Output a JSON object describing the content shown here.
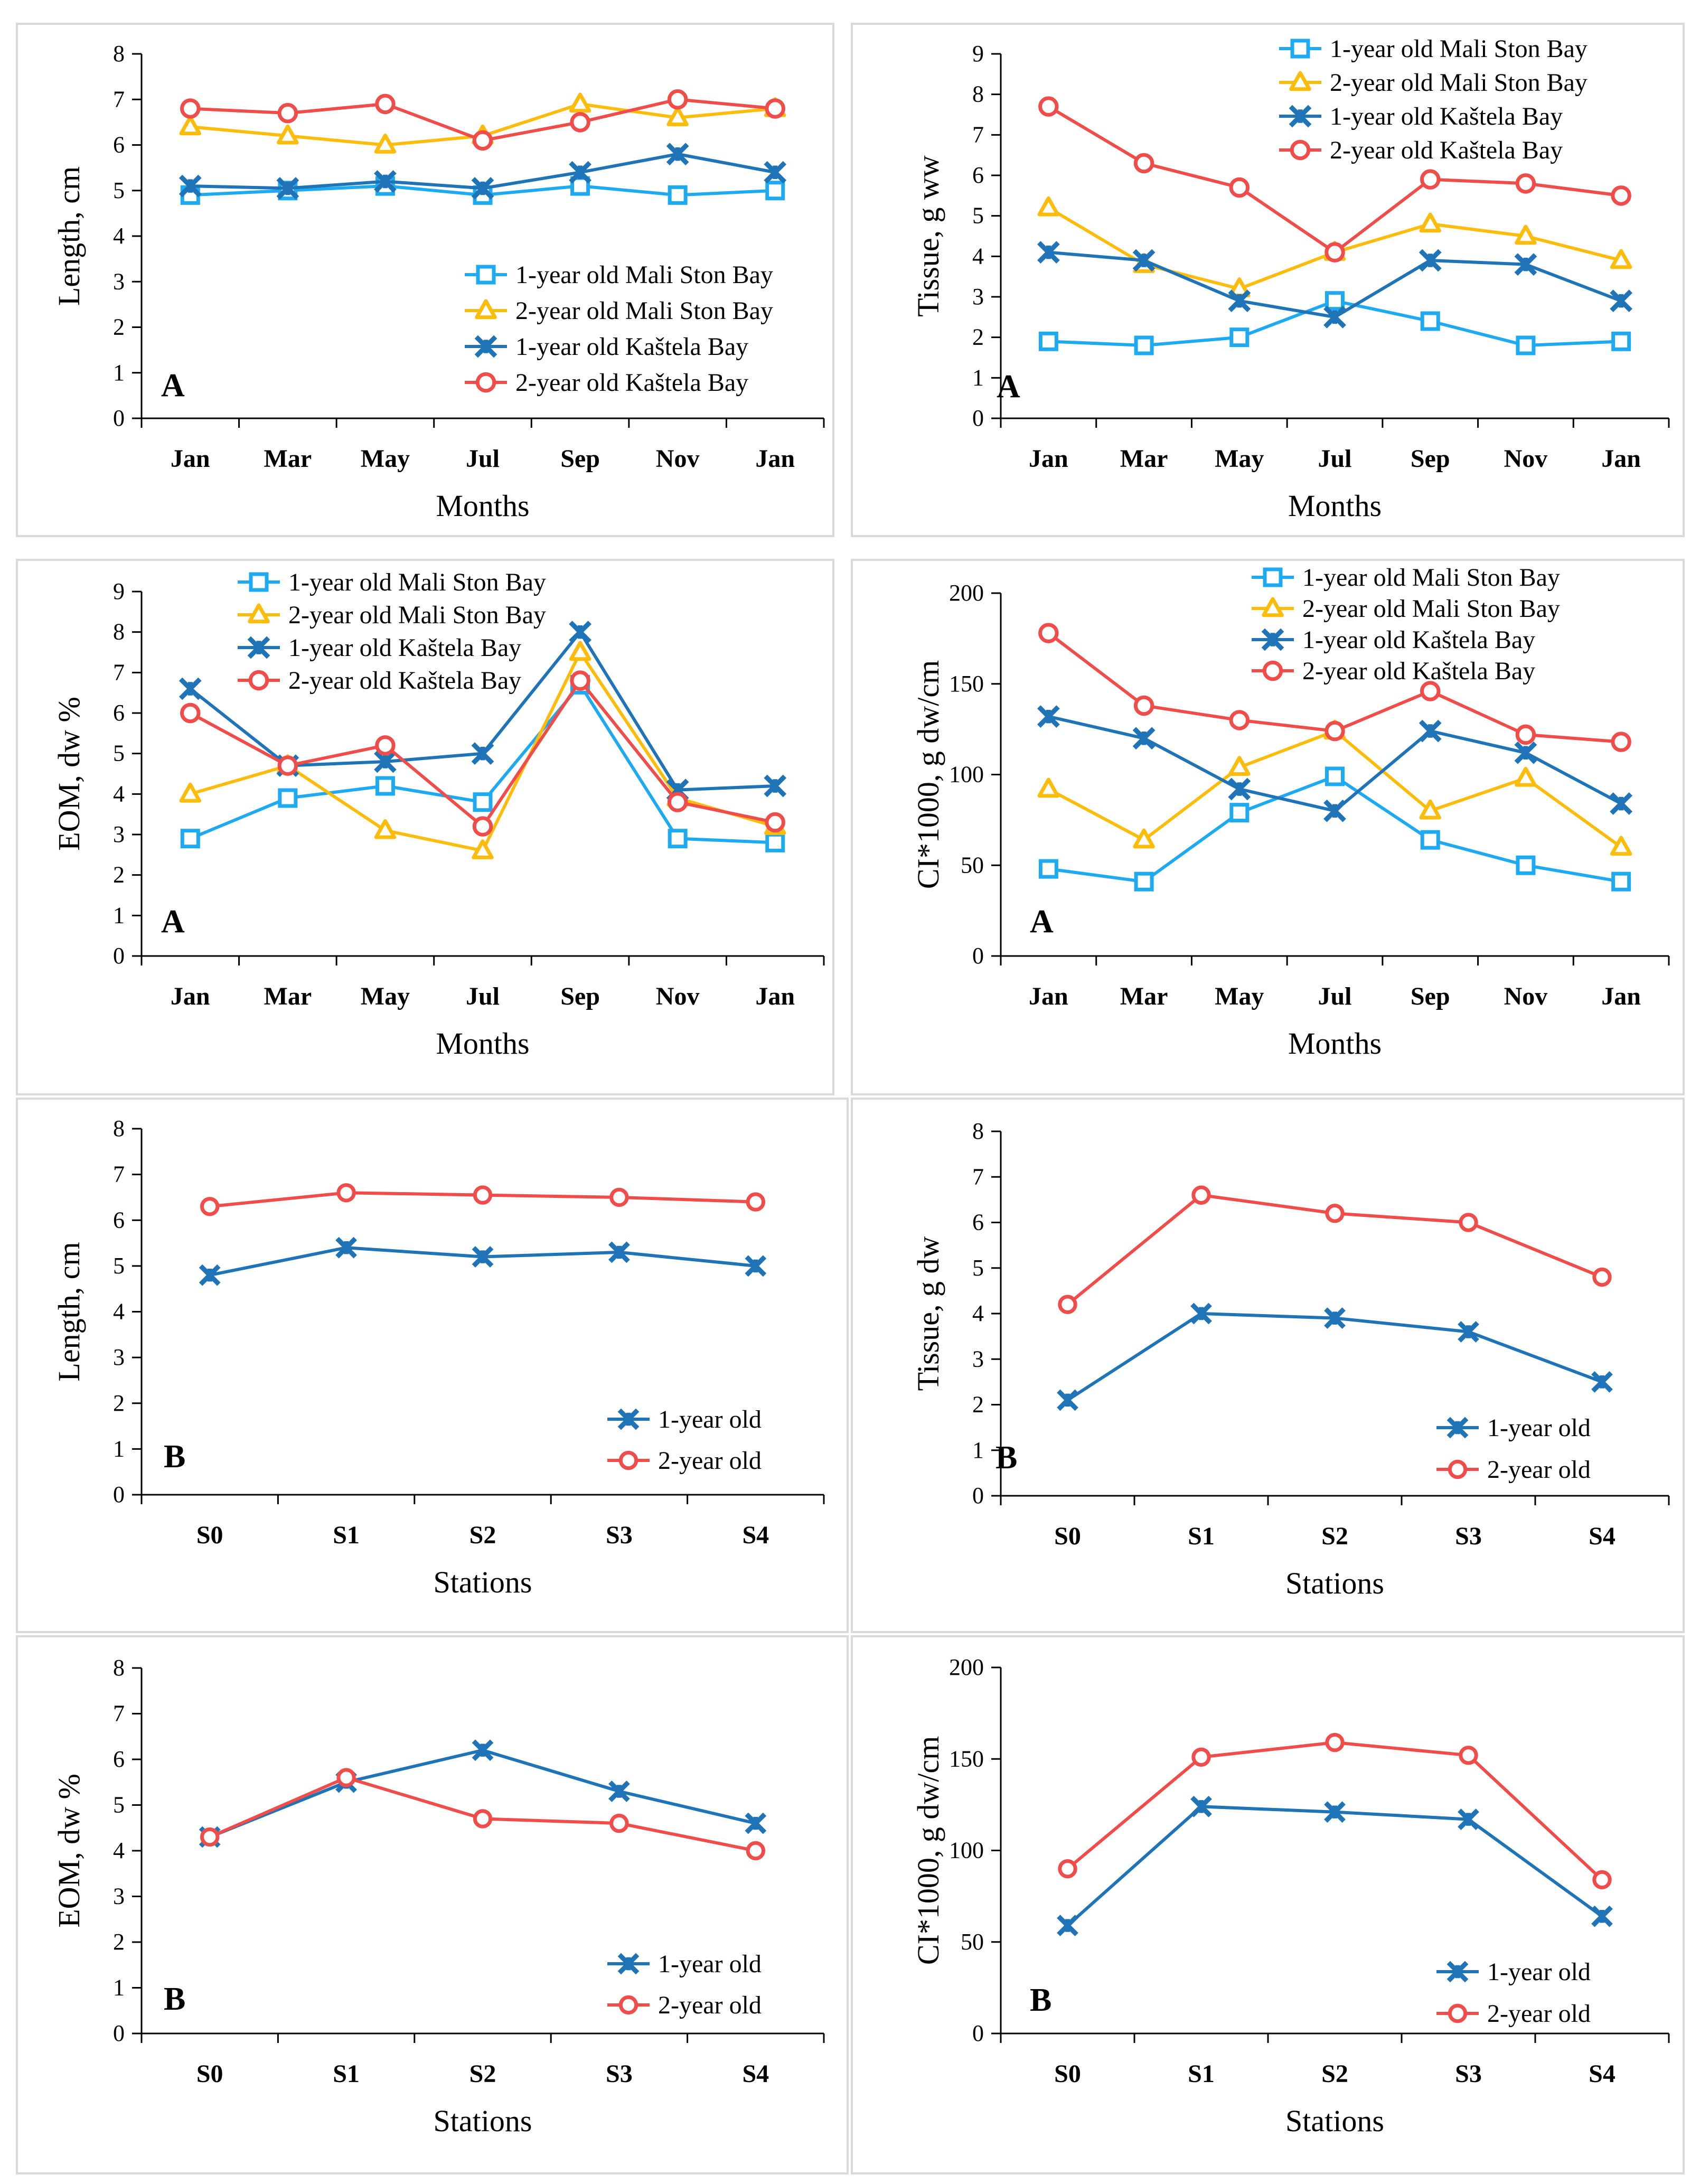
{
  "colors": {
    "light_blue": "#1eaaf1",
    "yellow": "#fbbc0b",
    "dark_blue": "#1f73b7",
    "red": "#ef4c4a",
    "axis": "#000000",
    "frame": "#d9d9d9"
  },
  "chart_data": [
    {
      "type": "line",
      "panel_label": "A",
      "ylabel": "Length, cm",
      "xlabel": "Months",
      "categories": [
        "Jan",
        "Mar",
        "May",
        "Jul",
        "Sep",
        "Nov",
        "Jan"
      ],
      "ylim": [
        0,
        8
      ],
      "yticks": [
        "0",
        "1",
        "2",
        "3",
        "4",
        "5",
        "6",
        "7",
        "8"
      ],
      "legend_position": "bottom-right",
      "series": [
        {
          "name": "1-year old Mali Ston Bay",
          "marker": "square",
          "color": "#1eaaf1",
          "values": [
            4.9,
            5.0,
            5.1,
            4.9,
            5.1,
            4.9,
            5.0
          ]
        },
        {
          "name": "2-year old Mali Ston Bay",
          "marker": "triangle",
          "color": "#fbbc0b",
          "values": [
            6.4,
            6.2,
            6.0,
            6.2,
            6.9,
            6.6,
            6.8
          ]
        },
        {
          "name": "1-year old Kaštela Bay",
          "marker": "x",
          "color": "#1f73b7",
          "values": [
            5.1,
            5.05,
            5.2,
            5.05,
            5.4,
            5.8,
            5.4
          ]
        },
        {
          "name": "2-year old Kaštela Bay",
          "marker": "circle",
          "color": "#ef4c4a",
          "values": [
            6.8,
            6.7,
            6.9,
            6.1,
            6.5,
            7.0,
            6.8
          ]
        }
      ]
    },
    {
      "type": "line",
      "panel_label": "A",
      "ylabel": "Tissue, g ww",
      "xlabel": "Months",
      "categories": [
        "Jan",
        "Mar",
        "May",
        "Jul",
        "Sep",
        "Nov",
        "Jan"
      ],
      "ylim": [
        0,
        9
      ],
      "yticks": [
        "0",
        "1",
        "2",
        "3",
        "4",
        "5",
        "6",
        "7",
        "8",
        "9"
      ],
      "legend_position": "top-right",
      "series": [
        {
          "name": "1-year old Mali Ston Bay",
          "marker": "square",
          "color": "#1eaaf1",
          "values": [
            1.9,
            1.8,
            2.0,
            2.9,
            2.4,
            1.8,
            1.9
          ]
        },
        {
          "name": "2-year old Mali Ston Bay",
          "marker": "triangle",
          "color": "#fbbc0b",
          "values": [
            5.2,
            3.8,
            3.2,
            4.1,
            4.8,
            4.5,
            3.9
          ]
        },
        {
          "name": "1-year old Kaštela Bay",
          "marker": "x",
          "color": "#1f73b7",
          "values": [
            4.1,
            3.9,
            2.9,
            2.5,
            3.9,
            3.8,
            2.9
          ]
        },
        {
          "name": "2-year old Kaštela Bay",
          "marker": "circle",
          "color": "#ef4c4a",
          "values": [
            7.7,
            6.3,
            5.7,
            4.1,
            5.9,
            5.8,
            5.5
          ]
        }
      ]
    },
    {
      "type": "line",
      "panel_label": "A",
      "ylabel": "EOM, dw %",
      "xlabel": "Months",
      "categories": [
        "Jan",
        "Mar",
        "May",
        "Jul",
        "Sep",
        "Nov",
        "Jan"
      ],
      "ylim": [
        0,
        9
      ],
      "yticks": [
        "0",
        "1",
        "2",
        "3",
        "4",
        "5",
        "6",
        "7",
        "8",
        "9"
      ],
      "legend_position": "top-center",
      "series": [
        {
          "name": "1-year old Mali Ston Bay",
          "marker": "square",
          "color": "#1eaaf1",
          "values": [
            2.9,
            3.9,
            4.2,
            3.8,
            6.7,
            2.9,
            2.8
          ]
        },
        {
          "name": "2-year old Mali Ston Bay",
          "marker": "triangle",
          "color": "#fbbc0b",
          "values": [
            4.0,
            4.7,
            3.1,
            2.6,
            7.5,
            3.9,
            3.2
          ]
        },
        {
          "name": "1-year old Kaštela Bay",
          "marker": "x",
          "color": "#1f73b7",
          "values": [
            6.6,
            4.7,
            4.8,
            5.0,
            8.0,
            4.1,
            4.2
          ]
        },
        {
          "name": "2-year old Kaštela Bay",
          "marker": "circle",
          "color": "#ef4c4a",
          "values": [
            6.0,
            4.7,
            5.2,
            3.2,
            6.8,
            3.8,
            3.3
          ]
        }
      ]
    },
    {
      "type": "line",
      "panel_label": "A",
      "ylabel": "CI*1000, g dw/cm",
      "xlabel": "Months",
      "categories": [
        "Jan",
        "Mar",
        "May",
        "Jul",
        "Sep",
        "Nov",
        "Jan"
      ],
      "ylim": [
        0,
        200
      ],
      "yticks": [
        "0",
        "50",
        "100",
        "150",
        "200"
      ],
      "legend_position": "top-right",
      "series": [
        {
          "name": "1-year old Mali Ston Bay",
          "marker": "square",
          "color": "#1eaaf1",
          "values": [
            48,
            41,
            79,
            99,
            64,
            50,
            41
          ]
        },
        {
          "name": "2-year old Mali Ston Bay",
          "marker": "triangle",
          "color": "#fbbc0b",
          "values": [
            92,
            64,
            104,
            124,
            80,
            98,
            60
          ]
        },
        {
          "name": "1-year old Kaštela Bay",
          "marker": "x",
          "color": "#1f73b7",
          "values": [
            132,
            120,
            92,
            80,
            124,
            112,
            84
          ]
        },
        {
          "name": "2-year old Kaštela Bay",
          "marker": "circle",
          "color": "#ef4c4a",
          "values": [
            178,
            138,
            130,
            124,
            146,
            122,
            118
          ]
        }
      ]
    },
    {
      "type": "line",
      "panel_label": "B",
      "ylabel": "Length, cm",
      "xlabel": "Stations",
      "categories": [
        "S0",
        "S1",
        "S2",
        "S3",
        "S4"
      ],
      "ylim": [
        0,
        8
      ],
      "yticks": [
        "0",
        "1",
        "2",
        "3",
        "4",
        "5",
        "6",
        "7",
        "8"
      ],
      "legend_position": "bottom-right",
      "series": [
        {
          "name": "1-year old",
          "marker": "x",
          "color": "#1f73b7",
          "values": [
            4.8,
            5.4,
            5.2,
            5.3,
            5.0
          ]
        },
        {
          "name": "2-year old",
          "marker": "circle",
          "color": "#ef4c4a",
          "values": [
            6.3,
            6.6,
            6.55,
            6.5,
            6.4
          ]
        }
      ]
    },
    {
      "type": "line",
      "panel_label": "B",
      "ylabel": "Tissue, g dw",
      "xlabel": "Stations",
      "categories": [
        "S0",
        "S1",
        "S2",
        "S3",
        "S4"
      ],
      "ylim": [
        0,
        8
      ],
      "yticks": [
        "0",
        "1",
        "2",
        "3",
        "4",
        "5",
        "6",
        "7",
        "8"
      ],
      "legend_position": "bottom-right",
      "series": [
        {
          "name": "1-year old",
          "marker": "x",
          "color": "#1f73b7",
          "values": [
            2.1,
            4.0,
            3.9,
            3.6,
            2.5
          ]
        },
        {
          "name": "2-year old",
          "marker": "circle",
          "color": "#ef4c4a",
          "values": [
            4.2,
            6.6,
            6.2,
            6.0,
            4.8
          ]
        }
      ]
    },
    {
      "type": "line",
      "panel_label": "B",
      "ylabel": "EOM, dw %",
      "xlabel": "Stations",
      "categories": [
        "S0",
        "S1",
        "S2",
        "S3",
        "S4"
      ],
      "ylim": [
        0,
        8
      ],
      "yticks": [
        "0",
        "1",
        "2",
        "3",
        "4",
        "5",
        "6",
        "7",
        "8"
      ],
      "legend_position": "bottom-right",
      "series": [
        {
          "name": "1-year old",
          "marker": "x",
          "color": "#1f73b7",
          "values": [
            4.3,
            5.5,
            6.2,
            5.3,
            4.6
          ]
        },
        {
          "name": "2-year old",
          "marker": "circle",
          "color": "#ef4c4a",
          "values": [
            4.3,
            5.6,
            4.7,
            4.6,
            4.0
          ]
        }
      ]
    },
    {
      "type": "line",
      "panel_label": "B",
      "ylabel": "CI*1000, g dw/cm",
      "xlabel": "Stations",
      "categories": [
        "S0",
        "S1",
        "S2",
        "S3",
        "S4"
      ],
      "ylim": [
        0,
        200
      ],
      "yticks": [
        "0",
        "50",
        "100",
        "150",
        "200"
      ],
      "legend_position": "bottom-right",
      "series": [
        {
          "name": "1-year old",
          "marker": "x",
          "color": "#1f73b7",
          "values": [
            59,
            124,
            121,
            117,
            64
          ]
        },
        {
          "name": "2-year old",
          "marker": "circle",
          "color": "#ef4c4a",
          "values": [
            90,
            151,
            159,
            152,
            84
          ]
        }
      ]
    }
  ]
}
